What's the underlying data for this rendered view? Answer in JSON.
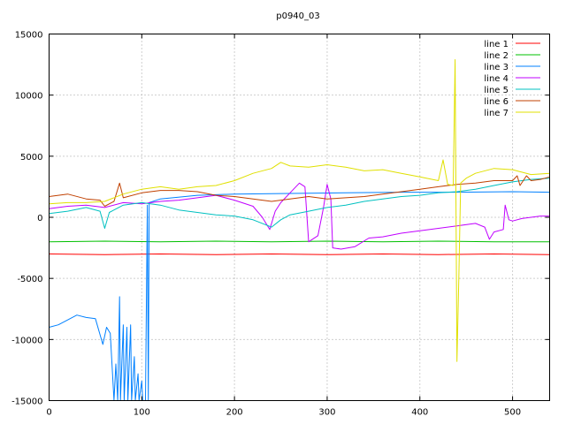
{
  "chart_data": {
    "type": "line",
    "title": "p0940_03",
    "xlabel": "",
    "ylabel": "",
    "xlim": [
      0,
      540
    ],
    "ylim": [
      -15000,
      15000
    ],
    "xticks": [
      0,
      100,
      200,
      300,
      400,
      500
    ],
    "yticks": [
      -15000,
      -10000,
      -5000,
      0,
      5000,
      10000,
      15000
    ],
    "grid": true,
    "legend_position": "top-right",
    "series": [
      {
        "name": "line 1",
        "color": "#ff0000",
        "points": [
          [
            0,
            -3000
          ],
          [
            60,
            -3050
          ],
          [
            120,
            -3000
          ],
          [
            180,
            -3050
          ],
          [
            240,
            -3000
          ],
          [
            300,
            -3050
          ],
          [
            360,
            -3000
          ],
          [
            420,
            -3050
          ],
          [
            480,
            -3000
          ],
          [
            540,
            -3050
          ]
        ]
      },
      {
        "name": "line 2",
        "color": "#00c000",
        "points": [
          [
            0,
            -2000
          ],
          [
            60,
            -1950
          ],
          [
            120,
            -2000
          ],
          [
            180,
            -1950
          ],
          [
            240,
            -2000
          ],
          [
            300,
            -1950
          ],
          [
            360,
            -2000
          ],
          [
            420,
            -1950
          ],
          [
            480,
            -2000
          ],
          [
            540,
            -2000
          ]
        ]
      },
      {
        "name": "line 3",
        "color": "#0080ff",
        "points": [
          [
            0,
            -9000
          ],
          [
            10,
            -8800
          ],
          [
            20,
            -8400
          ],
          [
            30,
            -8000
          ],
          [
            40,
            -8200
          ],
          [
            50,
            -8300
          ],
          [
            58,
            -10400
          ],
          [
            62,
            -9000
          ],
          [
            66,
            -9500
          ],
          [
            70,
            -15000
          ],
          [
            72,
            -12000
          ],
          [
            74,
            -15000
          ],
          [
            76,
            -6500
          ],
          [
            77,
            -15000
          ],
          [
            80,
            -8800
          ],
          [
            81,
            -15000
          ],
          [
            84,
            -9000
          ],
          [
            85,
            -15000
          ],
          [
            88,
            -8800
          ],
          [
            89,
            -15000
          ],
          [
            92,
            -11400
          ],
          [
            93,
            -15000
          ],
          [
            96,
            -12800
          ],
          [
            97,
            -15000
          ],
          [
            100,
            -13400
          ],
          [
            101,
            -15000
          ],
          [
            104,
            -15000
          ],
          [
            106,
            1000
          ],
          [
            107,
            -15000
          ],
          [
            108,
            1200
          ],
          [
            120,
            1500
          ],
          [
            160,
            1800
          ],
          [
            200,
            1900
          ],
          [
            260,
            1950
          ],
          [
            320,
            2000
          ],
          [
            380,
            2050
          ],
          [
            440,
            2050
          ],
          [
            500,
            2100
          ],
          [
            540,
            2050
          ]
        ]
      },
      {
        "name": "line 4",
        "color": "#c000ff",
        "points": [
          [
            0,
            700
          ],
          [
            20,
            900
          ],
          [
            40,
            1000
          ],
          [
            60,
            800
          ],
          [
            80,
            1200
          ],
          [
            100,
            1100
          ],
          [
            120,
            1300
          ],
          [
            140,
            1400
          ],
          [
            160,
            1600
          ],
          [
            180,
            1800
          ],
          [
            200,
            1400
          ],
          [
            220,
            900
          ],
          [
            230,
            0
          ],
          [
            238,
            -1000
          ],
          [
            244,
            500
          ],
          [
            250,
            1200
          ],
          [
            260,
            2000
          ],
          [
            270,
            2800
          ],
          [
            276,
            2500
          ],
          [
            280,
            -2000
          ],
          [
            290,
            -1500
          ],
          [
            296,
            800
          ],
          [
            300,
            2700
          ],
          [
            304,
            1500
          ],
          [
            306,
            -2500
          ],
          [
            315,
            -2600
          ],
          [
            330,
            -2400
          ],
          [
            345,
            -1700
          ],
          [
            360,
            -1600
          ],
          [
            380,
            -1300
          ],
          [
            400,
            -1100
          ],
          [
            420,
            -900
          ],
          [
            440,
            -700
          ],
          [
            460,
            -500
          ],
          [
            470,
            -800
          ],
          [
            475,
            -1800
          ],
          [
            480,
            -1200
          ],
          [
            490,
            -1000
          ],
          [
            492,
            1000
          ],
          [
            496,
            -200
          ],
          [
            500,
            -300
          ],
          [
            510,
            -100
          ],
          [
            520,
            0
          ],
          [
            530,
            100
          ],
          [
            540,
            100
          ]
        ]
      },
      {
        "name": "line 5",
        "color": "#00c0c0",
        "points": [
          [
            0,
            300
          ],
          [
            20,
            500
          ],
          [
            40,
            800
          ],
          [
            55,
            500
          ],
          [
            60,
            -900
          ],
          [
            65,
            400
          ],
          [
            80,
            1000
          ],
          [
            100,
            1200
          ],
          [
            120,
            1000
          ],
          [
            140,
            600
          ],
          [
            160,
            400
          ],
          [
            180,
            200
          ],
          [
            200,
            100
          ],
          [
            220,
            -200
          ],
          [
            240,
            -800
          ],
          [
            250,
            -200
          ],
          [
            260,
            200
          ],
          [
            280,
            500
          ],
          [
            300,
            800
          ],
          [
            320,
            1000
          ],
          [
            340,
            1300
          ],
          [
            360,
            1500
          ],
          [
            380,
            1700
          ],
          [
            400,
            1800
          ],
          [
            420,
            2000
          ],
          [
            440,
            2100
          ],
          [
            460,
            2300
          ],
          [
            480,
            2600
          ],
          [
            500,
            2900
          ],
          [
            520,
            3100
          ],
          [
            540,
            3200
          ]
        ]
      },
      {
        "name": "line 6",
        "color": "#c04000",
        "points": [
          [
            0,
            1700
          ],
          [
            20,
            1900
          ],
          [
            40,
            1500
          ],
          [
            55,
            1400
          ],
          [
            60,
            900
          ],
          [
            70,
            1300
          ],
          [
            76,
            2800
          ],
          [
            80,
            1600
          ],
          [
            100,
            2000
          ],
          [
            120,
            2200
          ],
          [
            140,
            2200
          ],
          [
            160,
            2100
          ],
          [
            180,
            1800
          ],
          [
            200,
            1700
          ],
          [
            220,
            1500
          ],
          [
            240,
            1300
          ],
          [
            260,
            1500
          ],
          [
            280,
            1700
          ],
          [
            300,
            1500
          ],
          [
            320,
            1600
          ],
          [
            340,
            1700
          ],
          [
            360,
            1900
          ],
          [
            380,
            2100
          ],
          [
            400,
            2300
          ],
          [
            420,
            2500
          ],
          [
            440,
            2700
          ],
          [
            460,
            2800
          ],
          [
            480,
            3000
          ],
          [
            500,
            3000
          ],
          [
            505,
            3400
          ],
          [
            508,
            2600
          ],
          [
            515,
            3400
          ],
          [
            520,
            3000
          ],
          [
            530,
            3100
          ],
          [
            540,
            3300
          ]
        ]
      },
      {
        "name": "line 7",
        "color": "#e0e000",
        "points": [
          [
            0,
            1100
          ],
          [
            20,
            1200
          ],
          [
            40,
            1200
          ],
          [
            60,
            1300
          ],
          [
            80,
            1900
          ],
          [
            100,
            2300
          ],
          [
            120,
            2500
          ],
          [
            140,
            2300
          ],
          [
            160,
            2500
          ],
          [
            180,
            2600
          ],
          [
            200,
            3000
          ],
          [
            220,
            3600
          ],
          [
            240,
            4000
          ],
          [
            250,
            4500
          ],
          [
            260,
            4200
          ],
          [
            280,
            4100
          ],
          [
            300,
            4300
          ],
          [
            320,
            4100
          ],
          [
            340,
            3800
          ],
          [
            360,
            3900
          ],
          [
            380,
            3600
          ],
          [
            400,
            3300
          ],
          [
            420,
            3000
          ],
          [
            425,
            4700
          ],
          [
            430,
            2700
          ],
          [
            436,
            2600
          ],
          [
            438,
            12900
          ],
          [
            440,
            -11800
          ],
          [
            442,
            -5000
          ],
          [
            444,
            2800
          ],
          [
            450,
            3200
          ],
          [
            460,
            3600
          ],
          [
            480,
            4000
          ],
          [
            500,
            3900
          ],
          [
            520,
            3500
          ],
          [
            540,
            3600
          ]
        ]
      }
    ]
  }
}
